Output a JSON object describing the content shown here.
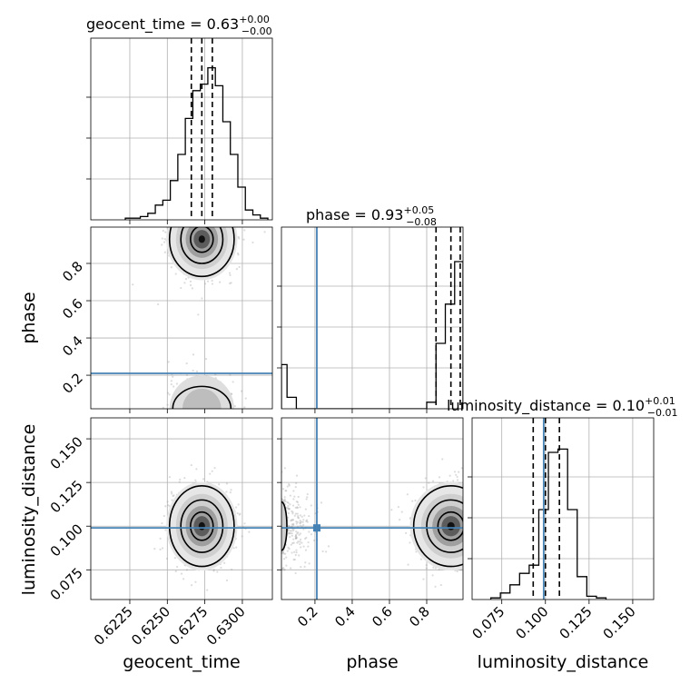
{
  "chart_data": {
    "type": "corner",
    "parameters": [
      "geocent_time",
      "phase",
      "luminosity_distance"
    ],
    "titles": {
      "geocent_time": {
        "name": "geocent_time",
        "value": "0.63",
        "plus": "+0.00",
        "minus": "−0.00"
      },
      "phase": {
        "name": "phase",
        "value": "0.93",
        "plus": "+0.05",
        "minus": "−0.08"
      },
      "luminosity_distance": {
        "name": "luminosity_distance",
        "value": "0.10",
        "plus": "+0.01",
        "minus": "−0.01"
      }
    },
    "axes": {
      "geocent_time": {
        "label": "geocent_time",
        "range": [
          0.6199,
          0.632
        ],
        "ticks": [
          0.6225,
          0.625,
          0.6275,
          0.63
        ],
        "tick_labels": [
          "0.6225",
          "0.6250",
          "0.6275",
          "0.6300"
        ]
      },
      "phase": {
        "label": "phase",
        "range": [
          0.02,
          0.995
        ],
        "ticks": [
          0.2,
          0.4,
          0.6,
          0.8
        ],
        "tick_labels": [
          "0.2",
          "0.4",
          "0.6",
          "0.8"
        ]
      },
      "luminosity_distance": {
        "label": "luminosity_distance",
        "range": [
          0.058,
          0.162
        ],
        "ticks": [
          0.075,
          0.1,
          0.125,
          0.15
        ],
        "tick_labels": [
          "0.075",
          "0.100",
          "0.125",
          "0.150"
        ]
      }
    },
    "truths": {
      "phase": 0.21,
      "luminosity_distance": 0.099
    },
    "quantiles": {
      "geocent_time": [
        0.6266,
        0.6273,
        0.628
      ],
      "phase": [
        0.85,
        0.93,
        0.98
      ],
      "luminosity_distance": [
        0.093,
        0.1,
        0.108
      ]
    },
    "histograms": {
      "geocent_time": {
        "edges": [
          0.6222,
          0.6227,
          0.6232,
          0.6237,
          0.6242,
          0.6247,
          0.6252,
          0.6257,
          0.6262,
          0.6267,
          0.6272,
          0.6277,
          0.6282,
          0.6287,
          0.6292,
          0.6297,
          0.6302,
          0.6307,
          0.6312,
          0.6317
        ],
        "counts": [
          0.01,
          0.01,
          0.02,
          0.04,
          0.09,
          0.12,
          0.24,
          0.4,
          0.62,
          0.79,
          0.83,
          0.93,
          0.82,
          0.6,
          0.4,
          0.2,
          0.06,
          0.03,
          0.01
        ]
      },
      "phase": {
        "edges": [
          0.02,
          0.05,
          0.1,
          0.15,
          0.2,
          0.25,
          0.3,
          0.35,
          0.4,
          0.45,
          0.5,
          0.55,
          0.6,
          0.65,
          0.7,
          0.75,
          0.8,
          0.85,
          0.9,
          0.95,
          0.995
        ],
        "counts": [
          0.27,
          0.07,
          0.0,
          0.0,
          0.0,
          0.0,
          0.0,
          0.0,
          0.0,
          0.0,
          0.0,
          0.0,
          0.0,
          0.0,
          0.0,
          0.0,
          0.04,
          0.4,
          0.64,
          0.9
        ]
      },
      "luminosity_distance": {
        "edges": [
          0.0687,
          0.0742,
          0.0797,
          0.0852,
          0.0907,
          0.0962,
          0.1017,
          0.1072,
          0.1127,
          0.1182,
          0.1237,
          0.1292,
          0.1347
        ],
        "counts": [
          0.01,
          0.04,
          0.09,
          0.16,
          0.21,
          0.55,
          0.9,
          0.92,
          0.55,
          0.14,
          0.02,
          0.01
        ]
      }
    },
    "grid": true
  }
}
